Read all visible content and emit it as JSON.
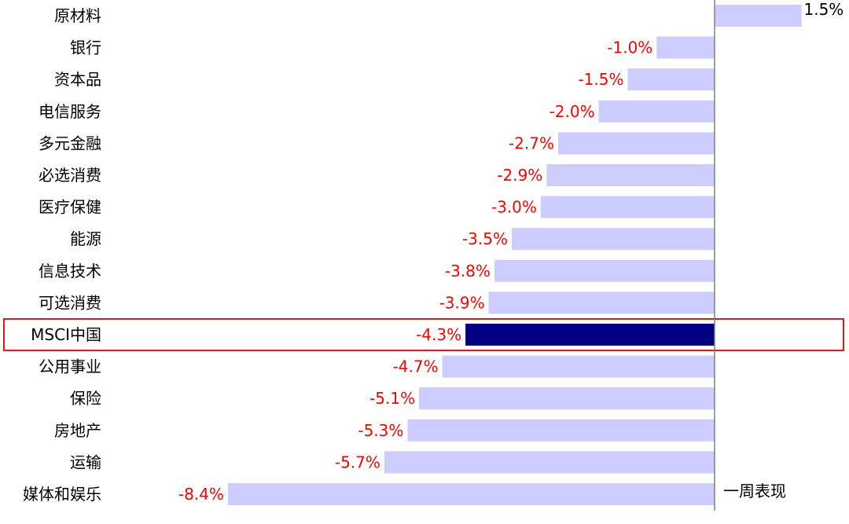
{
  "chart_data": {
    "type": "bar",
    "orientation": "horizontal",
    "categories": [
      "原材料",
      "银行",
      "资本品",
      "电信服务",
      "多元金融",
      "必选消费",
      "医疗保健",
      "能源",
      "信息技术",
      "可选消费",
      "MSCI中国",
      "公用事业",
      "保险",
      "房地产",
      "运输",
      "媒体和娱乐"
    ],
    "values": [
      1.5,
      -1.0,
      -1.5,
      -2.0,
      -2.7,
      -2.9,
      -3.0,
      -3.5,
      -3.8,
      -3.9,
      -4.3,
      -4.7,
      -5.1,
      -5.3,
      -5.7,
      -8.4
    ],
    "value_labels": [
      "1.5%",
      "-1.0%",
      "-1.5%",
      "-2.0%",
      "-2.7%",
      "-2.9%",
      "-3.0%",
      "-3.5%",
      "-3.8%",
      "-3.9%",
      "-4.3%",
      "-4.7%",
      "-5.1%",
      "-5.3%",
      "-5.7%",
      "-8.4%"
    ],
    "series": [
      {
        "name": "一周表现",
        "values": [
          1.5,
          -1.0,
          -1.5,
          -2.0,
          -2.7,
          -2.9,
          -3.0,
          -3.5,
          -3.8,
          -3.9,
          -4.3,
          -4.7,
          -5.1,
          -5.3,
          -5.7,
          -8.4
        ]
      }
    ],
    "highlight_category": "MSCI中国",
    "xlim": [
      -8.4,
      1.5
    ],
    "grid": false,
    "legend": "bottom-right",
    "colors": {
      "bar": "#ccccff",
      "highlight_bar": "#000080",
      "negative_label": "#ff0000",
      "positive_label": "#000000",
      "highlight_box": "#e8141c",
      "axis": "#808080"
    }
  }
}
